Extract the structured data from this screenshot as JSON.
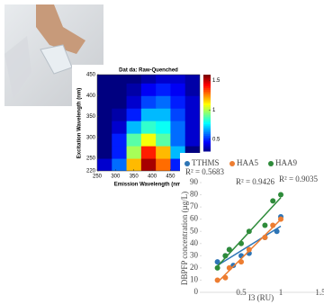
{
  "chart_data": [
    {
      "type": "heatmap",
      "title": "Dat da: Raw-Quenched",
      "x_label": "Emission Wavelength (nm)",
      "y_label": "Excitation Wavelength (nm)",
      "x": [
        270,
        310,
        350,
        390,
        430,
        470,
        510
      ],
      "y": [
        235,
        265,
        295,
        325,
        355,
        385,
        415,
        445
      ],
      "z": [
        [
          0.4,
          0.6,
          1.2,
          1.55,
          1.3,
          0.5,
          0.2
        ],
        [
          0.3,
          0.5,
          1.0,
          1.4,
          1.2,
          0.7,
          0.3
        ],
        [
          0.3,
          0.5,
          0.9,
          1.1,
          0.9,
          0.6,
          0.4
        ],
        [
          0.3,
          0.4,
          0.7,
          0.85,
          0.8,
          0.6,
          0.4
        ],
        [
          0.3,
          0.35,
          0.5,
          0.7,
          0.7,
          0.55,
          0.4
        ],
        [
          0.3,
          0.3,
          0.4,
          0.55,
          0.6,
          0.5,
          0.4
        ],
        [
          0.3,
          0.3,
          0.35,
          0.45,
          0.5,
          0.45,
          0.35
        ],
        [
          0.3,
          0.3,
          0.3,
          0.35,
          0.4,
          0.4,
          0.35
        ]
      ],
      "xlim": [
        250,
        530
      ],
      "xticks": [
        250,
        300,
        350,
        400,
        450,
        500
      ],
      "ylim": [
        220,
        450
      ],
      "yticks": [
        220,
        250,
        300,
        350,
        400,
        450
      ],
      "clim": [
        0.3,
        1.6
      ],
      "colorbar_ticks": [
        0.5,
        1,
        1.5
      ],
      "colormap": "jet"
    },
    {
      "type": "scatter",
      "x_label": "I3 (RU)",
      "y_label": "DBPFP concentration (µg/L)",
      "annotations": [
        "R² = 0.5683",
        "R² = 0.9426",
        "R² = 0.9035"
      ],
      "xlim": [
        0,
        1.5
      ],
      "xticks": [
        0.5,
        1,
        1.5
      ],
      "ylim": [
        0,
        90
      ],
      "yticks": [
        0,
        10,
        20,
        30,
        40,
        50,
        60,
        70,
        80,
        90
      ],
      "trendline": true,
      "series": [
        {
          "name": "TTHMS",
          "color": "#2e75b6",
          "x": [
            0.2,
            0.3,
            0.35,
            0.4,
            0.5,
            0.6,
            0.8,
            0.95,
            1.0
          ],
          "values": [
            25,
            30,
            35,
            22,
            30,
            32,
            45,
            50,
            62
          ]
        },
        {
          "name": "HAA5",
          "color": "#ed7d31",
          "x": [
            0.2,
            0.3,
            0.35,
            0.5,
            0.6,
            0.8,
            0.9,
            1.0
          ],
          "values": [
            10,
            12,
            20,
            25,
            35,
            45,
            55,
            60
          ]
        },
        {
          "name": "HAA9",
          "color": "#2e8b3a",
          "x": [
            0.2,
            0.3,
            0.35,
            0.5,
            0.6,
            0.8,
            0.9,
            1.0
          ],
          "values": [
            20,
            30,
            35,
            40,
            50,
            55,
            75,
            80
          ]
        }
      ]
    }
  ]
}
